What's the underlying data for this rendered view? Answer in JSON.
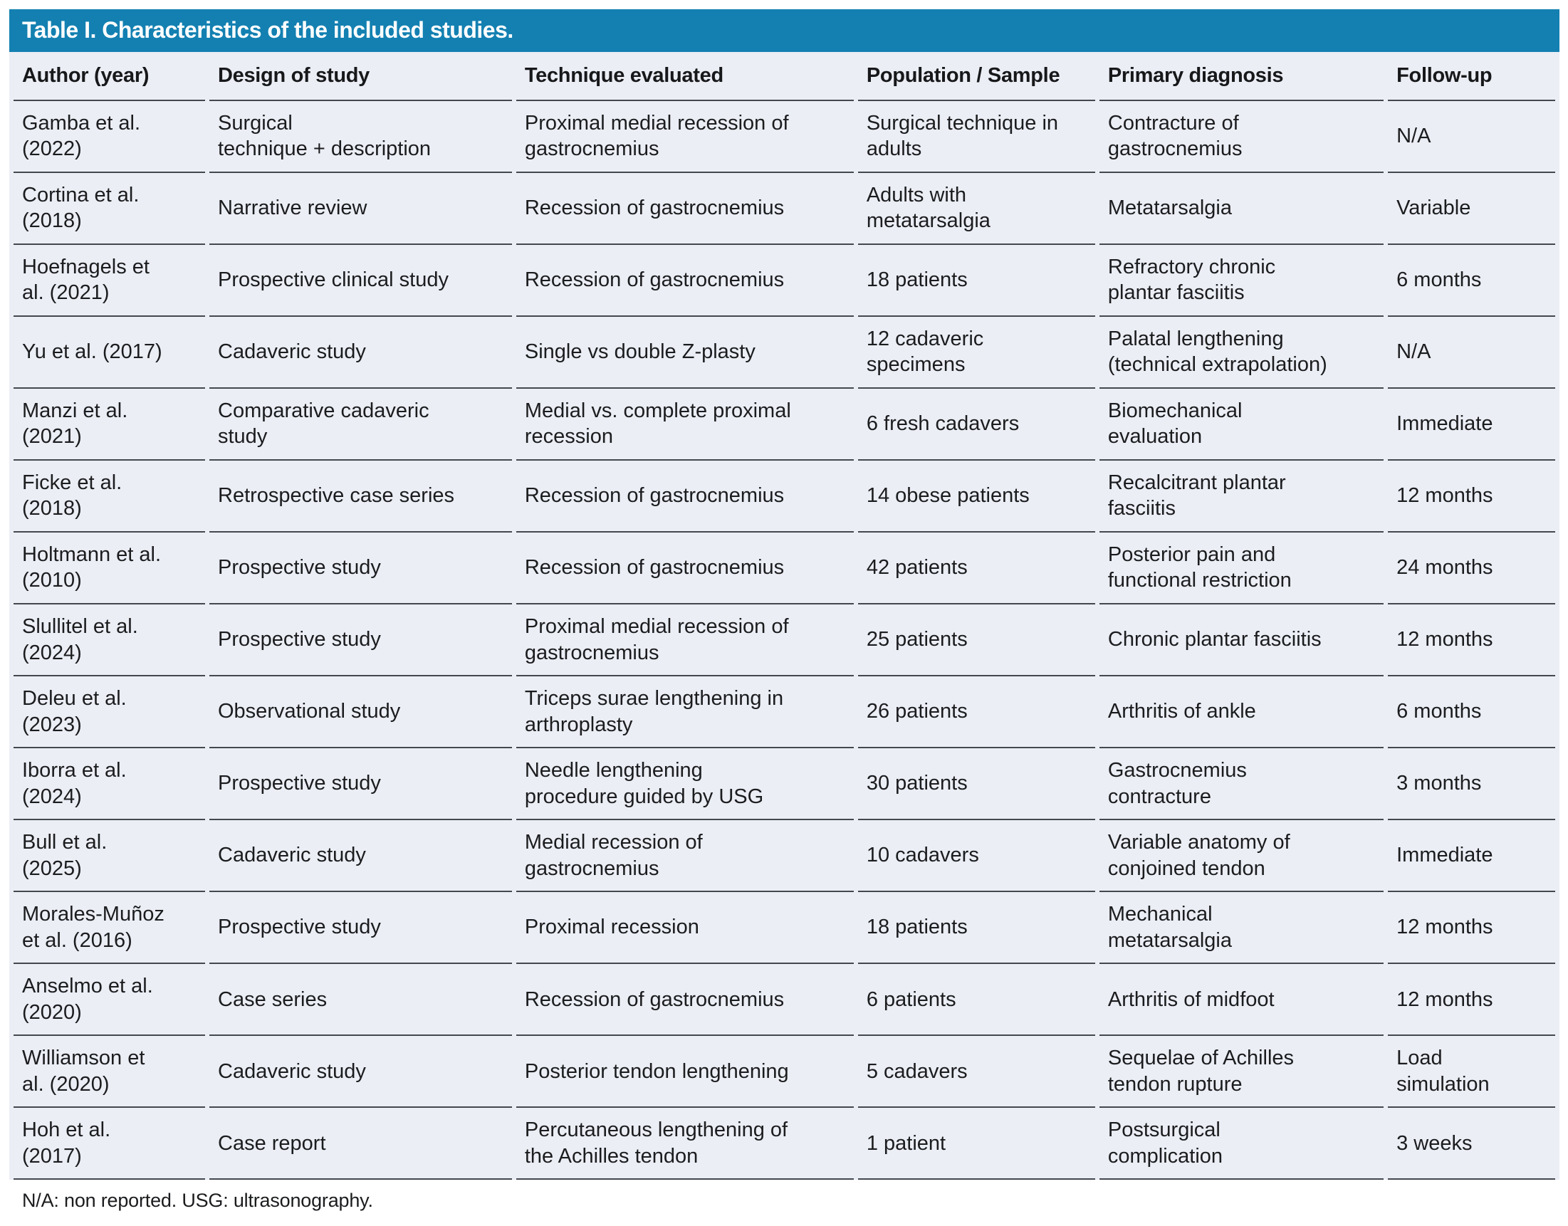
{
  "title": "Table I. Characteristics of the included studies.",
  "footnote": "N/A: non reported. USG: ultrasonography.",
  "colors": {
    "title_bar": "#1380b1",
    "title_text": "#ffffff",
    "row_background": "#ebeef5",
    "separator": "#43484e",
    "body_text": "#1b1c1e"
  },
  "table": {
    "columns": [
      "Author (year)",
      "Design of study",
      "Technique evaluated",
      "Population / Sample",
      "Primary diagnosis",
      "Follow-up"
    ],
    "rows": [
      [
        "Gamba et al.\n(2022)",
        "Surgical\ntechnique + description",
        "Proximal medial recession of\ngastrocnemius",
        "Surgical technique in\nadults",
        "Contracture of\ngastrocnemius",
        "N/A"
      ],
      [
        "Cortina et al.\n(2018)",
        "Narrative review",
        "Recession of gastrocnemius",
        "Adults with\nmetatarsalgia",
        "Metatarsalgia",
        "Variable"
      ],
      [
        "Hoefnagels et\nal. (2021)",
        "Prospective clinical study",
        "Recession of gastrocnemius",
        "18 patients",
        "Refractory chronic\nplantar fasciitis",
        "6 months"
      ],
      [
        "Yu et al. (2017)",
        "Cadaveric study",
        "Single vs double Z-plasty",
        "12 cadaveric\nspecimens",
        "Palatal lengthening\n(technical extrapolation)",
        "N/A"
      ],
      [
        "Manzi et al.\n(2021)",
        "Comparative cadaveric\nstudy",
        "Medial vs. complete proximal\nrecession",
        "6 fresh cadavers",
        "Biomechanical\nevaluation",
        "Immediate"
      ],
      [
        "Ficke et al.\n(2018)",
        "Retrospective case series",
        "Recession of gastrocnemius",
        "14 obese patients",
        "Recalcitrant plantar\nfasciitis",
        "12 months"
      ],
      [
        "Holtmann et al.\n(2010)",
        "Prospective study",
        "Recession of gastrocnemius",
        "42 patients",
        "Posterior pain and\nfunctional restriction",
        "24 months"
      ],
      [
        "Slullitel et al.\n(2024)",
        "Prospective study",
        "Proximal medial recession of\ngastrocnemius",
        "25 patients",
        "Chronic plantar fasciitis",
        "12 months"
      ],
      [
        "Deleu et al.\n(2023)",
        "Observational study",
        "Triceps surae lengthening in\narthroplasty",
        "26 patients",
        "Arthritis of ankle",
        "6 months"
      ],
      [
        "Iborra et al.\n(2024)",
        "Prospective study",
        "Needle lengthening\nprocedure guided by USG",
        "30 patients",
        "Gastrocnemius\ncontracture",
        "3 months"
      ],
      [
        "Bull et al.\n(2025)",
        "Cadaveric study",
        "Medial recession of\ngastrocnemius",
        "10 cadavers",
        "Variable anatomy of\nconjoined tendon",
        "Immediate"
      ],
      [
        "Morales-Muñoz\net al. (2016)",
        "Prospective study",
        "Proximal recession",
        "18 patients",
        "Mechanical\nmetatarsalgia",
        "12 months"
      ],
      [
        "Anselmo et al.\n(2020)",
        "Case series",
        "Recession of gastrocnemius",
        "6 patients",
        "Arthritis of midfoot",
        "12 months"
      ],
      [
        "Williamson et\nal. (2020)",
        "Cadaveric study",
        "Posterior tendon lengthening",
        "5 cadavers",
        "Sequelae of Achilles\ntendon rupture",
        "Load\nsimulation"
      ],
      [
        "Hoh et al.\n(2017)",
        "Case report",
        "Percutaneous lengthening of\nthe Achilles tendon",
        "1 patient",
        "Postsurgical\ncomplication",
        "3 weeks"
      ]
    ]
  }
}
